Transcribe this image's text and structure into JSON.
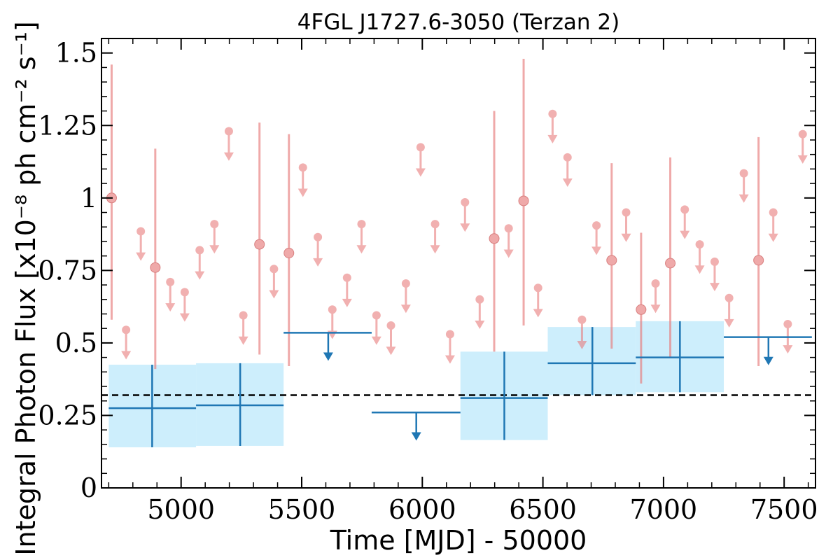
{
  "chart_data": {
    "type": "scatter",
    "title": "4FGL J1727.6-3050 (Terzan 2)",
    "xlabel": "Time [MJD] - 50000",
    "ylabel": "Integral Photon Flux [x10⁻⁸ ph cm⁻² s⁻¹]",
    "xlim": [
      4670,
      7630
    ],
    "ylim": [
      0,
      1.55
    ],
    "x_ticks": [
      {
        "value": 5000,
        "label": "5000"
      },
      {
        "value": 5500,
        "label": "5500"
      },
      {
        "value": 6000,
        "label": "6000"
      },
      {
        "value": 6500,
        "label": "6500"
      },
      {
        "value": 7000,
        "label": "7000"
      },
      {
        "value": 7500,
        "label": "7500"
      }
    ],
    "y_ticks": [
      {
        "value": 0,
        "label": "0"
      },
      {
        "value": 0.25,
        "label": "0.25"
      },
      {
        "value": 0.5,
        "label": "0.5"
      },
      {
        "value": 0.75,
        "label": "0.75"
      },
      {
        "value": 1.0,
        "label": "1"
      },
      {
        "value": 1.25,
        "label": "1.25"
      },
      {
        "value": 1.5,
        "label": "1.5"
      }
    ],
    "reference_line": {
      "y": 0.32,
      "style": "dashed",
      "color": "#000000"
    },
    "colors": {
      "short_bins": "#e87c7c",
      "long_bins": "#1f77b4",
      "long_bins_band": "#cdeefc"
    },
    "short_bins": {
      "detections": [
        {
          "x": 4712,
          "y": 1.0,
          "ylo": 0.58,
          "yhi": 1.46
        },
        {
          "x": 4893,
          "y": 0.76,
          "ylo": 0.41,
          "yhi": 1.17
        },
        {
          "x": 5325,
          "y": 0.84,
          "ylo": 0.46,
          "yhi": 1.26
        },
        {
          "x": 5447,
          "y": 0.81,
          "ylo": 0.42,
          "yhi": 1.22
        },
        {
          "x": 6298,
          "y": 0.86,
          "ylo": 0.47,
          "yhi": 1.3
        },
        {
          "x": 6420,
          "y": 0.99,
          "ylo": 0.56,
          "yhi": 1.48
        },
        {
          "x": 6785,
          "y": 0.785,
          "ylo": 0.48,
          "yhi": 1.12
        },
        {
          "x": 6907,
          "y": 0.615,
          "ylo": 0.36,
          "yhi": 0.88
        },
        {
          "x": 7028,
          "y": 0.775,
          "ylo": 0.45,
          "yhi": 1.14
        },
        {
          "x": 7394,
          "y": 0.785,
          "ylo": 0.42,
          "yhi": 1.21
        }
      ],
      "upper_limits": [
        {
          "x": 4772,
          "y": 0.545
        },
        {
          "x": 4833,
          "y": 0.885
        },
        {
          "x": 4955,
          "y": 0.71
        },
        {
          "x": 5015,
          "y": 0.675
        },
        {
          "x": 5077,
          "y": 0.82
        },
        {
          "x": 5138,
          "y": 0.91
        },
        {
          "x": 5198,
          "y": 1.23
        },
        {
          "x": 5258,
          "y": 0.595
        },
        {
          "x": 5385,
          "y": 0.755
        },
        {
          "x": 5505,
          "y": 1.105
        },
        {
          "x": 5567,
          "y": 0.865
        },
        {
          "x": 5627,
          "y": 0.615
        },
        {
          "x": 5688,
          "y": 0.725
        },
        {
          "x": 5748,
          "y": 0.91
        },
        {
          "x": 5810,
          "y": 0.595
        },
        {
          "x": 5870,
          "y": 0.56
        },
        {
          "x": 5932,
          "y": 0.705
        },
        {
          "x": 5993,
          "y": 1.175
        },
        {
          "x": 6053,
          "y": 0.91
        },
        {
          "x": 6115,
          "y": 0.53
        },
        {
          "x": 6177,
          "y": 0.985
        },
        {
          "x": 6238,
          "y": 0.65
        },
        {
          "x": 6358,
          "y": 0.895
        },
        {
          "x": 6480,
          "y": 0.69
        },
        {
          "x": 6540,
          "y": 1.29
        },
        {
          "x": 6602,
          "y": 1.14
        },
        {
          "x": 6662,
          "y": 0.58
        },
        {
          "x": 6722,
          "y": 0.905
        },
        {
          "x": 6845,
          "y": 0.95
        },
        {
          "x": 6967,
          "y": 0.705
        },
        {
          "x": 7088,
          "y": 0.96
        },
        {
          "x": 7150,
          "y": 0.84
        },
        {
          "x": 7212,
          "y": 0.78
        },
        {
          "x": 7272,
          "y": 0.655
        },
        {
          "x": 7333,
          "y": 1.085
        },
        {
          "x": 7455,
          "y": 0.95
        },
        {
          "x": 7515,
          "y": 0.565
        },
        {
          "x": 7577,
          "y": 1.22
        }
      ]
    },
    "long_bins": {
      "detections": [
        {
          "x0": 4700,
          "x1": 5062,
          "xc": 4880,
          "y": 0.275,
          "ylo": 0.14,
          "yhi": 0.425
        },
        {
          "x0": 5062,
          "x1": 5425,
          "xc": 5245,
          "y": 0.285,
          "ylo": 0.145,
          "yhi": 0.43
        },
        {
          "x0": 6158,
          "x1": 6520,
          "xc": 6340,
          "y": 0.31,
          "ylo": 0.165,
          "yhi": 0.47
        },
        {
          "x0": 6520,
          "x1": 6885,
          "xc": 6705,
          "y": 0.43,
          "ylo": 0.32,
          "yhi": 0.555
        },
        {
          "x0": 6885,
          "x1": 7250,
          "xc": 7068,
          "y": 0.45,
          "ylo": 0.33,
          "yhi": 0.575
        }
      ],
      "upper_limits": [
        {
          "x0": 5425,
          "x1": 5790,
          "xc": 5610,
          "y": 0.535
        },
        {
          "x0": 5790,
          "x1": 6158,
          "xc": 5975,
          "y": 0.26
        },
        {
          "x0": 7250,
          "x1": 7615,
          "xc": 7435,
          "y": 0.52
        }
      ]
    }
  }
}
